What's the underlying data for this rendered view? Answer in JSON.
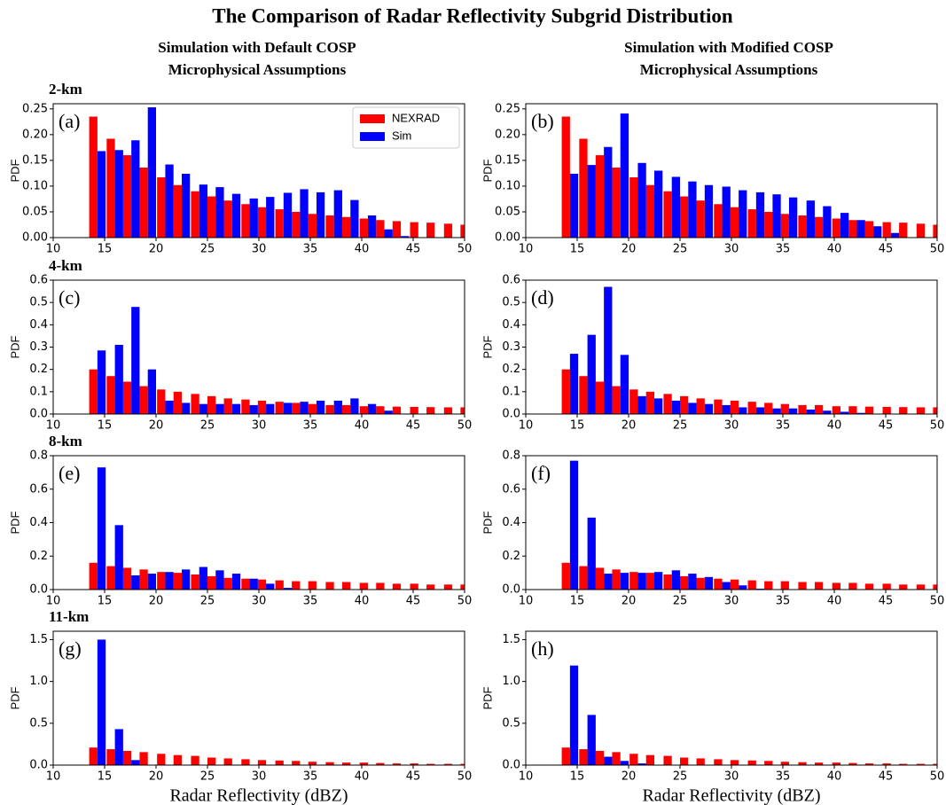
{
  "title": "The Comparison of Radar Reflectivity Subgrid Distribution",
  "column_titles": [
    [
      "Simulation with Default COSP",
      "Microphysical Assumptions"
    ],
    [
      "Simulation with Modified COSP",
      "Microphysical Assumptions"
    ]
  ],
  "row_labels": [
    "2-km",
    "4-km",
    "8-km",
    "11-km"
  ],
  "chart_data": [
    {
      "type": "bar",
      "panel_label": "(a)",
      "ylabel": "PDF",
      "legend": "upper right",
      "x": [
        13.5,
        15.2,
        16.8,
        18.4,
        20.1,
        21.7,
        23.4,
        25.0,
        26.6,
        28.3,
        29.9,
        31.6,
        33.2,
        34.8,
        36.5,
        38.1,
        39.8,
        41.4,
        43.0,
        44.7,
        46.3,
        48.0,
        49.6
      ],
      "xlim": [
        10,
        50
      ],
      "xticks": [
        10,
        15,
        20,
        25,
        30,
        35,
        40,
        45,
        50
      ],
      "ylim": [
        0,
        0.26
      ],
      "yticks": [
        {
          "value": 0,
          "label": "0.00"
        },
        0.05,
        {
          "value": 0.1,
          "label": "0.10"
        },
        0.15,
        {
          "value": 0.2,
          "label": "0.20"
        },
        0.25
      ],
      "series": [
        {
          "name": "NEXRAD",
          "color": "#ff0000",
          "values": [
            0.235,
            0.192,
            0.16,
            0.136,
            0.117,
            0.102,
            0.09,
            0.08,
            0.072,
            0.065,
            0.059,
            0.055,
            0.05,
            0.046,
            0.043,
            0.04,
            0.037,
            0.034,
            0.032,
            0.03,
            0.029,
            0.027,
            0.025
          ]
        },
        {
          "name": "Sim",
          "color": "#0000ff",
          "values": [
            0.168,
            0.17,
            0.189,
            0.253,
            0.142,
            0.124,
            0.103,
            0.098,
            0.085,
            0.076,
            0.079,
            0.087,
            0.094,
            0.088,
            0.092,
            0.073,
            0.043,
            0.016,
            0.003,
            null,
            null,
            null,
            null
          ]
        }
      ]
    },
    {
      "type": "bar",
      "panel_label": "(b)",
      "ylabel": "PDF",
      "x": [
        13.5,
        15.2,
        16.8,
        18.4,
        20.1,
        21.7,
        23.4,
        25.0,
        26.6,
        28.3,
        29.9,
        31.6,
        33.2,
        34.8,
        36.5,
        38.1,
        39.8,
        41.4,
        43.0,
        44.7,
        46.3,
        48.0,
        49.6
      ],
      "xlim": [
        10,
        50
      ],
      "xticks": [
        10,
        15,
        20,
        25,
        30,
        35,
        40,
        45,
        50
      ],
      "ylim": [
        0,
        0.26
      ],
      "yticks": [
        {
          "value": 0,
          "label": "0.00"
        },
        0.05,
        {
          "value": 0.1,
          "label": "0.10"
        },
        0.15,
        {
          "value": 0.2,
          "label": "0.20"
        },
        0.25
      ],
      "series": [
        {
          "color": "#ff0000",
          "values": [
            0.235,
            0.192,
            0.16,
            0.136,
            0.117,
            0.102,
            0.09,
            0.08,
            0.072,
            0.065,
            0.059,
            0.055,
            0.05,
            0.046,
            0.043,
            0.04,
            0.037,
            0.034,
            0.032,
            0.03,
            0.029,
            0.027,
            0.025
          ]
        },
        {
          "color": "#0000ff",
          "values": [
            0.124,
            0.141,
            0.176,
            0.241,
            0.145,
            0.13,
            0.118,
            0.109,
            0.102,
            0.099,
            0.092,
            0.088,
            0.084,
            0.078,
            0.072,
            0.061,
            0.048,
            0.034,
            0.022,
            0.009,
            null,
            null,
            null
          ]
        }
      ]
    },
    {
      "type": "bar",
      "panel_label": "(c)",
      "ylabel": "PDF",
      "x": [
        13.5,
        15.2,
        16.8,
        18.4,
        20.1,
        21.7,
        23.4,
        25.0,
        26.6,
        28.3,
        29.9,
        31.6,
        33.2,
        34.8,
        36.5,
        38.1,
        39.8,
        41.4,
        43.0,
        44.7,
        46.3,
        48.0,
        49.6
      ],
      "xlim": [
        10,
        50
      ],
      "xticks": [
        10,
        15,
        20,
        25,
        30,
        35,
        40,
        45,
        50
      ],
      "ylim": [
        0,
        0.6
      ],
      "yticks": [
        {
          "value": 0,
          "label": "0.0"
        },
        0.1,
        0.2,
        0.3,
        0.4,
        0.5,
        0.6
      ],
      "series": [
        {
          "color": "#ff0000",
          "values": [
            0.2,
            0.17,
            0.145,
            0.125,
            0.11,
            0.1,
            0.09,
            0.08,
            0.07,
            0.065,
            0.06,
            0.055,
            0.05,
            0.045,
            0.04,
            0.04,
            0.035,
            0.035,
            0.033,
            0.032,
            0.031,
            0.03,
            0.03
          ]
        },
        {
          "color": "#0000ff",
          "values": [
            0.285,
            0.31,
            0.48,
            0.2,
            0.06,
            0.05,
            0.045,
            0.045,
            0.045,
            0.04,
            0.045,
            0.05,
            0.055,
            0.06,
            0.06,
            0.07,
            0.045,
            0.015,
            0.002,
            null,
            null,
            null,
            null
          ]
        }
      ]
    },
    {
      "type": "bar",
      "panel_label": "(d)",
      "ylabel": "PDF",
      "x": [
        13.5,
        15.2,
        16.8,
        18.4,
        20.1,
        21.7,
        23.4,
        25.0,
        26.6,
        28.3,
        29.9,
        31.6,
        33.2,
        34.8,
        36.5,
        38.1,
        39.8,
        41.4,
        43.0,
        44.7,
        46.3,
        48.0,
        49.6
      ],
      "xlim": [
        10,
        50
      ],
      "xticks": [
        10,
        15,
        20,
        25,
        30,
        35,
        40,
        45,
        50
      ],
      "ylim": [
        0,
        0.6
      ],
      "yticks": [
        {
          "value": 0,
          "label": "0.0"
        },
        0.1,
        0.2,
        0.3,
        0.4,
        0.5,
        0.6
      ],
      "series": [
        {
          "color": "#ff0000",
          "values": [
            0.2,
            0.17,
            0.145,
            0.125,
            0.11,
            0.1,
            0.09,
            0.08,
            0.07,
            0.065,
            0.06,
            0.055,
            0.05,
            0.045,
            0.04,
            0.04,
            0.035,
            0.035,
            0.033,
            0.032,
            0.031,
            0.03,
            0.03
          ]
        },
        {
          "color": "#0000ff",
          "values": [
            0.27,
            0.355,
            0.57,
            0.265,
            0.08,
            0.07,
            0.06,
            0.05,
            0.045,
            0.04,
            0.03,
            0.03,
            0.025,
            0.025,
            0.02,
            0.015,
            0.01,
            0.005,
            null,
            null,
            null,
            null,
            null
          ]
        }
      ]
    },
    {
      "type": "bar",
      "panel_label": "(e)",
      "ylabel": "PDF",
      "x": [
        13.5,
        15.2,
        16.8,
        18.4,
        20.1,
        21.7,
        23.4,
        25.0,
        26.6,
        28.3,
        29.9,
        31.6,
        33.2,
        34.8,
        36.5,
        38.1,
        39.8,
        41.4,
        43.0,
        44.7,
        46.3,
        48.0,
        49.6
      ],
      "xlim": [
        10,
        50
      ],
      "xticks": [
        10,
        15,
        20,
        25,
        30,
        35,
        40,
        45,
        50
      ],
      "ylim": [
        0,
        0.8
      ],
      "yticks": [
        {
          "value": 0,
          "label": "0.0"
        },
        0.2,
        0.4,
        0.6,
        0.8
      ],
      "series": [
        {
          "color": "#ff0000",
          "values": [
            0.16,
            0.14,
            0.13,
            0.12,
            0.105,
            0.1,
            0.09,
            0.08,
            0.07,
            0.065,
            0.06,
            0.055,
            0.05,
            0.05,
            0.045,
            0.045,
            0.04,
            0.04,
            0.035,
            0.035,
            0.03,
            0.03,
            0.03
          ]
        },
        {
          "color": "#0000ff",
          "values": [
            0.73,
            0.385,
            0.085,
            0.095,
            0.105,
            0.12,
            0.135,
            0.115,
            0.095,
            0.065,
            0.035,
            0.01,
            null,
            null,
            null,
            null,
            null,
            null,
            null,
            null,
            null,
            null,
            null
          ]
        }
      ]
    },
    {
      "type": "bar",
      "panel_label": "(f)",
      "ylabel": "PDF",
      "x": [
        13.5,
        15.2,
        16.8,
        18.4,
        20.1,
        21.7,
        23.4,
        25.0,
        26.6,
        28.3,
        29.9,
        31.6,
        33.2,
        34.8,
        36.5,
        38.1,
        39.8,
        41.4,
        43.0,
        44.7,
        46.3,
        48.0,
        49.6
      ],
      "xlim": [
        10,
        50
      ],
      "xticks": [
        10,
        15,
        20,
        25,
        30,
        35,
        40,
        45,
        50
      ],
      "ylim": [
        0,
        0.8
      ],
      "yticks": [
        {
          "value": 0,
          "label": "0.0"
        },
        0.2,
        0.4,
        0.6,
        0.8
      ],
      "series": [
        {
          "color": "#ff0000",
          "values": [
            0.16,
            0.14,
            0.13,
            0.12,
            0.105,
            0.1,
            0.09,
            0.08,
            0.07,
            0.065,
            0.06,
            0.055,
            0.05,
            0.05,
            0.045,
            0.045,
            0.04,
            0.04,
            0.035,
            0.035,
            0.03,
            0.03,
            0.03
          ]
        },
        {
          "color": "#0000ff",
          "values": [
            0.77,
            0.43,
            0.095,
            0.1,
            0.1,
            0.105,
            0.115,
            0.095,
            0.075,
            0.045,
            0.025,
            0.005,
            null,
            null,
            null,
            null,
            null,
            null,
            null,
            null,
            null,
            null,
            null
          ]
        }
      ]
    },
    {
      "type": "bar",
      "panel_label": "(g)",
      "ylabel": "PDF",
      "xlabel": "Radar Reflectivity (dBZ)",
      "x": [
        13.5,
        15.2,
        16.8,
        18.4,
        20.1,
        21.7,
        23.4,
        25.0,
        26.6,
        28.3,
        29.9,
        31.6,
        33.2,
        34.8,
        36.5,
        38.1,
        39.8,
        41.4,
        43.0,
        44.7,
        46.3,
        48.0,
        49.6
      ],
      "xlim": [
        10,
        50
      ],
      "xticks": [
        10,
        15,
        20,
        25,
        30,
        35,
        40,
        45,
        50
      ],
      "ylim": [
        0,
        1.6
      ],
      "yticks": [
        {
          "value": 0,
          "label": "0.0"
        },
        0.5,
        {
          "value": 1,
          "label": "1.0"
        },
        1.5
      ],
      "series": [
        {
          "color": "#ff0000",
          "values": [
            0.21,
            0.19,
            0.17,
            0.155,
            0.135,
            0.12,
            0.11,
            0.09,
            0.08,
            0.07,
            0.06,
            0.055,
            0.05,
            0.04,
            0.035,
            0.03,
            0.03,
            0.025,
            0.02,
            0.02,
            0.015,
            0.015,
            0.015
          ]
        },
        {
          "color": "#0000ff",
          "values": [
            1.5,
            0.43,
            0.06,
            null,
            null,
            null,
            null,
            null,
            null,
            null,
            null,
            null,
            null,
            null,
            null,
            null,
            null,
            null,
            null,
            null,
            null,
            null,
            null
          ]
        }
      ]
    },
    {
      "type": "bar",
      "panel_label": "(h)",
      "ylabel": "PDF",
      "xlabel": "Radar Reflectivity (dBZ)",
      "x": [
        13.5,
        15.2,
        16.8,
        18.4,
        20.1,
        21.7,
        23.4,
        25.0,
        26.6,
        28.3,
        29.9,
        31.6,
        33.2,
        34.8,
        36.5,
        38.1,
        39.8,
        41.4,
        43.0,
        44.7,
        46.3,
        48.0,
        49.6
      ],
      "xlim": [
        10,
        50
      ],
      "xticks": [
        10,
        15,
        20,
        25,
        30,
        35,
        40,
        45,
        50
      ],
      "ylim": [
        0,
        1.6
      ],
      "yticks": [
        {
          "value": 0,
          "label": "0.0"
        },
        0.5,
        {
          "value": 1,
          "label": "1.0"
        },
        1.5
      ],
      "series": [
        {
          "color": "#ff0000",
          "values": [
            0.21,
            0.19,
            0.17,
            0.155,
            0.135,
            0.12,
            0.11,
            0.09,
            0.08,
            0.07,
            0.06,
            0.055,
            0.05,
            0.04,
            0.035,
            0.03,
            0.03,
            0.025,
            0.02,
            0.02,
            0.015,
            0.015,
            0.015
          ]
        },
        {
          "color": "#0000ff",
          "values": [
            1.19,
            0.6,
            0.1,
            0.05,
            0.02,
            null,
            null,
            null,
            null,
            null,
            null,
            null,
            null,
            null,
            null,
            null,
            null,
            null,
            null,
            null,
            null,
            null,
            null
          ]
        }
      ]
    }
  ]
}
